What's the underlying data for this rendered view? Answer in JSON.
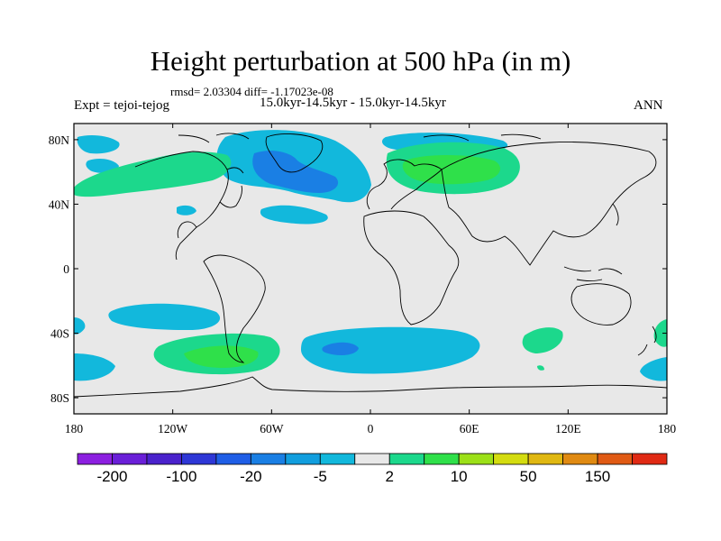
{
  "title": "Height perturbation at 500 hPa (in m)",
  "rmsd_text": "rmsd= 2.03304  diff= -1.17023e-08",
  "left_label": "Expt = tejoi-tejog",
  "center_label": "15.0kyr-14.5kyr - 15.0kyr-14.5kyr",
  "right_label": "ANN",
  "map": {
    "projection": "cylindrical equidistant",
    "lon_range": [
      -180,
      180
    ],
    "lat_range": [
      -90,
      90
    ],
    "background_color": "#e8e8e8",
    "x_ticks": [
      {
        "value": -180,
        "label": "180"
      },
      {
        "value": -120,
        "label": "120W"
      },
      {
        "value": -60,
        "label": "60W"
      },
      {
        "value": 0,
        "label": "0"
      },
      {
        "value": 60,
        "label": "60E"
      },
      {
        "value": 120,
        "label": "120E"
      },
      {
        "value": 180,
        "label": "180"
      }
    ],
    "y_ticks": [
      {
        "value": 80,
        "label": "80N"
      },
      {
        "value": 40,
        "label": "40N"
      },
      {
        "value": 0,
        "label": "0"
      },
      {
        "value": -40,
        "label": "40S"
      },
      {
        "value": -80,
        "label": "80S"
      }
    ]
  },
  "colorbar": {
    "colors": [
      "#8c1fe0",
      "#6a1fd8",
      "#4a22cc",
      "#2e37d6",
      "#1f5ee6",
      "#1a7fe4",
      "#119ede",
      "#12b8dc",
      "#e8e8e8",
      "#1cd88c",
      "#2fe04a",
      "#9ce018",
      "#d4dc10",
      "#e0b812",
      "#e08a12",
      "#e05a14",
      "#e02a14"
    ],
    "labels": [
      {
        "after_box": 1,
        "text": "-200"
      },
      {
        "after_box": 3,
        "text": "-100"
      },
      {
        "after_box": 5,
        "text": "-20"
      },
      {
        "after_box": 7,
        "text": "-5"
      },
      {
        "after_box": 9,
        "text": "2"
      },
      {
        "after_box": 11,
        "text": "10"
      },
      {
        "after_box": 13,
        "text": "50"
      },
      {
        "after_box": 15,
        "text": "150"
      }
    ]
  }
}
